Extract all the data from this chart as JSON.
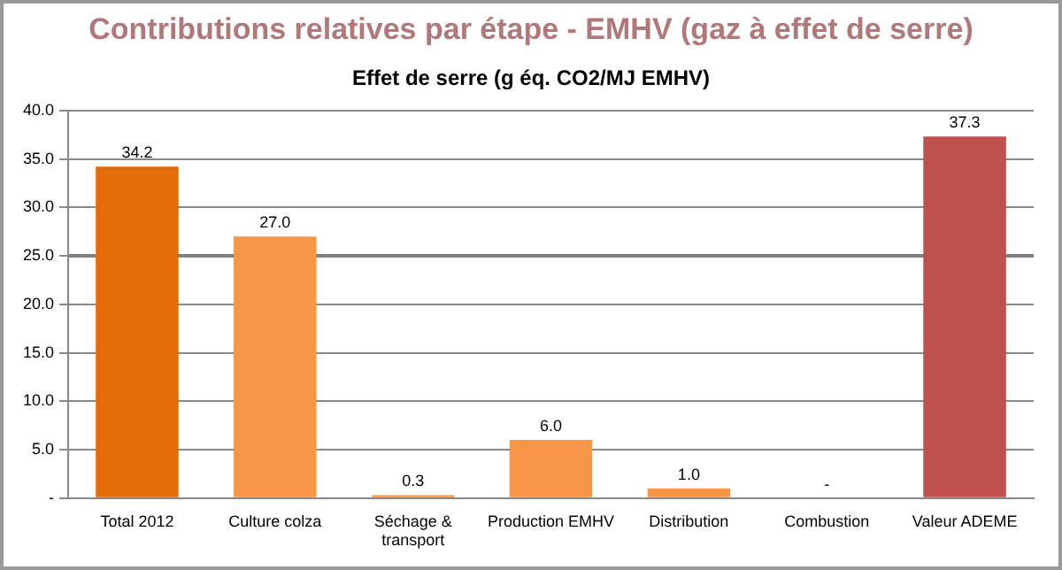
{
  "chart_data": {
    "type": "bar",
    "title": "Contributions relatives par étape - EMHV (gaz à effet de serre)",
    "subtitle": "Effet de serre (g éq. CO2/MJ EMHV)",
    "categories": [
      "Total 2012",
      "Culture colza",
      "Séchage & transport",
      "Production EMHV",
      "Distribution",
      "Combustion",
      "Valeur ADEME"
    ],
    "values": [
      34.2,
      27.0,
      0.3,
      6.0,
      1.0,
      0,
      37.3
    ],
    "colors": [
      "#e36c09",
      "#f79646",
      "#f79646",
      "#f79646",
      "#f79646",
      "#f79646",
      "#c0504d"
    ],
    "value_labels": [
      "34.2",
      "27.0",
      "0.3",
      "6.0",
      "1.0",
      "-",
      "37.3"
    ],
    "ylim": [
      0,
      40
    ],
    "yticks": [
      {
        "value": 0,
        "label": "-"
      },
      {
        "value": 5,
        "label": "5.0"
      },
      {
        "value": 10,
        "label": "10.0"
      },
      {
        "value": 15,
        "label": "15.0"
      },
      {
        "value": 20,
        "label": "20.0"
      },
      {
        "value": 25,
        "label": "25.0"
      },
      {
        "value": 30,
        "label": "30.0"
      },
      {
        "value": 35,
        "label": "35.0"
      },
      {
        "value": 40,
        "label": "40.0"
      }
    ],
    "ref_lines": [
      {
        "axis": "y",
        "value": 25,
        "color": "#808080"
      }
    ],
    "grid": "y",
    "legend": false
  }
}
